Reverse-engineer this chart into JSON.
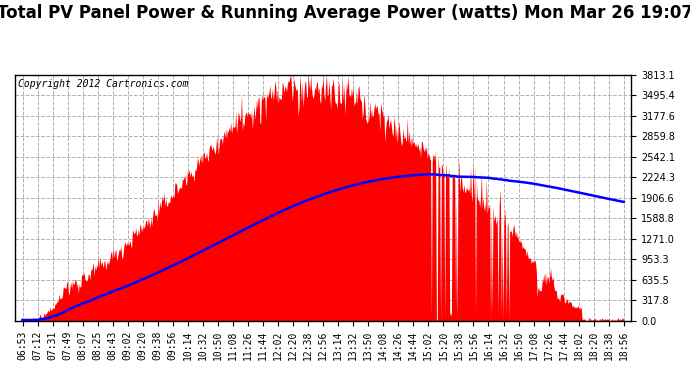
{
  "title": "Total PV Panel Power & Running Average Power (watts) Mon Mar 26 19:07",
  "copyright_text": "Copyright 2012 Cartronics.com",
  "y_ticks": [
    0.0,
    317.8,
    635.5,
    953.3,
    1271.0,
    1588.8,
    1906.6,
    2224.3,
    2542.1,
    2859.8,
    3177.6,
    3495.4,
    3813.1
  ],
  "x_labels": [
    "06:53",
    "07:12",
    "07:31",
    "07:49",
    "08:07",
    "08:25",
    "08:43",
    "09:02",
    "09:20",
    "09:38",
    "09:56",
    "10:14",
    "10:32",
    "10:50",
    "11:08",
    "11:26",
    "11:44",
    "12:02",
    "12:20",
    "12:38",
    "12:56",
    "13:14",
    "13:32",
    "13:50",
    "14:08",
    "14:26",
    "14:44",
    "15:02",
    "15:20",
    "15:38",
    "15:56",
    "16:14",
    "16:32",
    "16:50",
    "17:08",
    "17:26",
    "17:44",
    "18:02",
    "18:20",
    "18:38",
    "18:56"
  ],
  "n_labels": 41,
  "bg_color": "#ffffff",
  "bar_color": "#ff0000",
  "line_color": "#0000ff",
  "title_fontsize": 12,
  "copyright_fontsize": 7,
  "tick_fontsize": 7,
  "grid_color": "#b0b0b0",
  "y_max": 3813.1,
  "y_min": 0.0,
  "figwidth": 6.9,
  "figheight": 3.75,
  "dpi": 100
}
